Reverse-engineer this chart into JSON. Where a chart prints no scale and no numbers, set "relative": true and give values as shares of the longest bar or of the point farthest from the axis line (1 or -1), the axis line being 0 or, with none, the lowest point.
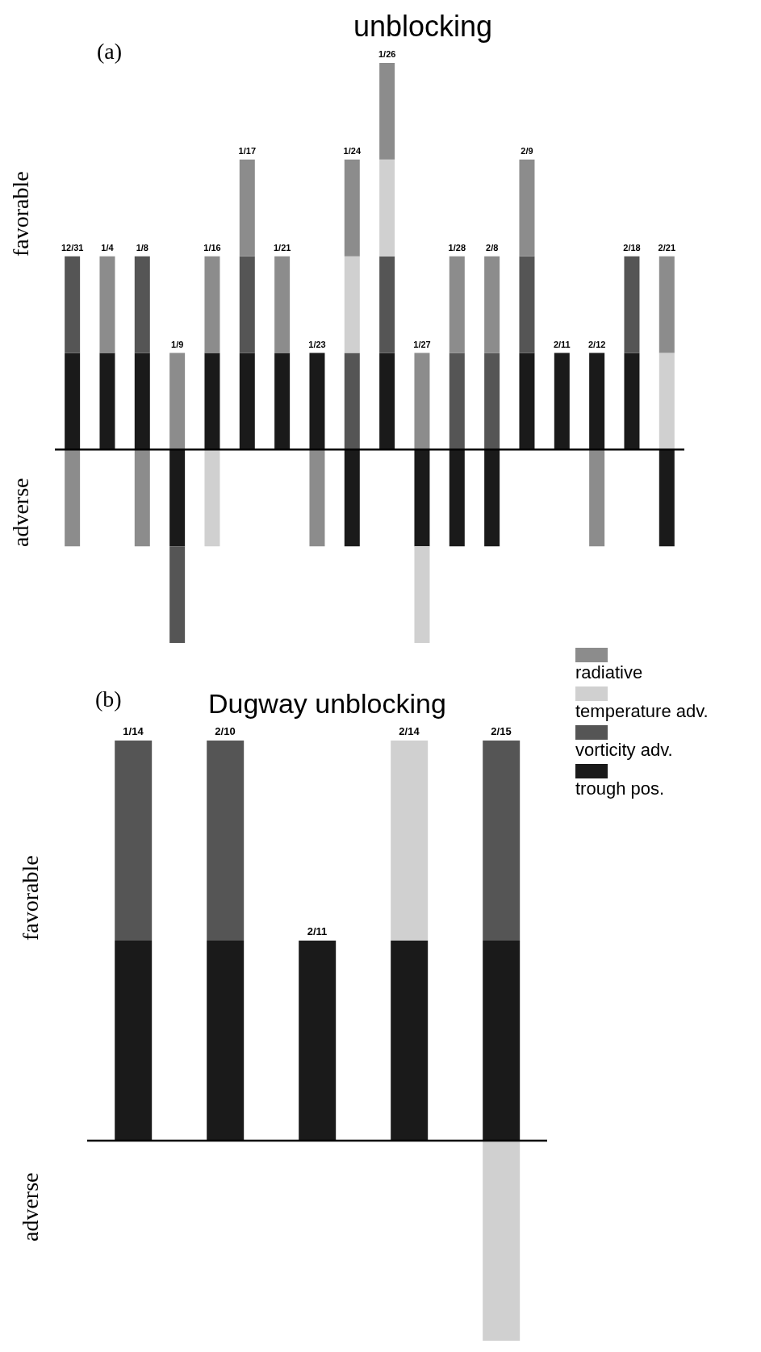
{
  "chart_data": [
    {
      "type": "bar",
      "title": "unblocking",
      "ylabel": "favorable",
      "annotations": [
        "(a)",
        "adverse"
      ],
      "relative": true,
      "stacked": true,
      "categories": [
        "12/31",
        "1/4",
        "1/8",
        "1/9",
        "1/16",
        "1/17",
        "1/21",
        "1/23",
        "1/24",
        "1/26",
        "1/27",
        "1/28",
        "2/8",
        "2/9",
        "2/11",
        "2/12",
        "2/18",
        "2/21"
      ],
      "series": [
        {
          "color": "#1a1a1a",
          "values": [
            0.25,
            0.25,
            0.25,
            -0.25,
            0.25,
            0.25,
            0.25,
            0.25,
            -0.25,
            0.25,
            -0.25,
            -0.25,
            -0.25,
            0.25,
            0.25,
            0.25,
            0.25,
            -0.25
          ]
        },
        {
          "color": "#555555",
          "values": [
            0.25,
            0,
            0.25,
            -0.25,
            0,
            0.25,
            0,
            0,
            0.25,
            0.25,
            0,
            0.25,
            0.25,
            0.25,
            0,
            0,
            0.25,
            0
          ]
        },
        {
          "color": "#d0d0d0",
          "values": [
            0,
            0,
            0,
            0,
            -0.25,
            0,
            0,
            0,
            0.25,
            0.25,
            -0.25,
            0,
            0,
            0,
            0,
            0,
            0,
            0.25
          ]
        },
        {
          "color": "#8c8c8c",
          "values": [
            -0.25,
            0.25,
            -0.25,
            0.25,
            0.25,
            0.25,
            0.25,
            -0.25,
            0.25,
            0.25,
            0.25,
            0.25,
            0.25,
            0.25,
            0,
            -0.25,
            0,
            0.25
          ]
        }
      ]
    },
    {
      "type": "bar",
      "title": "Dugway unblocking",
      "ylabel": "favorable",
      "annotations": [
        "(b)",
        "adverse"
      ],
      "relative": true,
      "stacked": true,
      "legend": "right",
      "categories": [
        "1/14",
        "2/10",
        "2/11",
        "2/14",
        "2/15"
      ],
      "series": [
        {
          "name": "trough pos.",
          "color": "#1a1a1a",
          "values": [
            0.5,
            0.5,
            0.5,
            0.5,
            0.5
          ]
        },
        {
          "name": "vorticity adv.",
          "color": "#555555",
          "values": [
            0.5,
            0.5,
            0,
            0,
            0.5
          ]
        },
        {
          "name": "temperature adv.",
          "color": "#d0d0d0",
          "values": [
            0,
            0,
            0,
            0.5,
            -0.5
          ]
        },
        {
          "name": "radiative",
          "color": "#8c8c8c",
          "values": [
            0,
            0,
            0,
            0,
            0
          ]
        }
      ]
    }
  ]
}
